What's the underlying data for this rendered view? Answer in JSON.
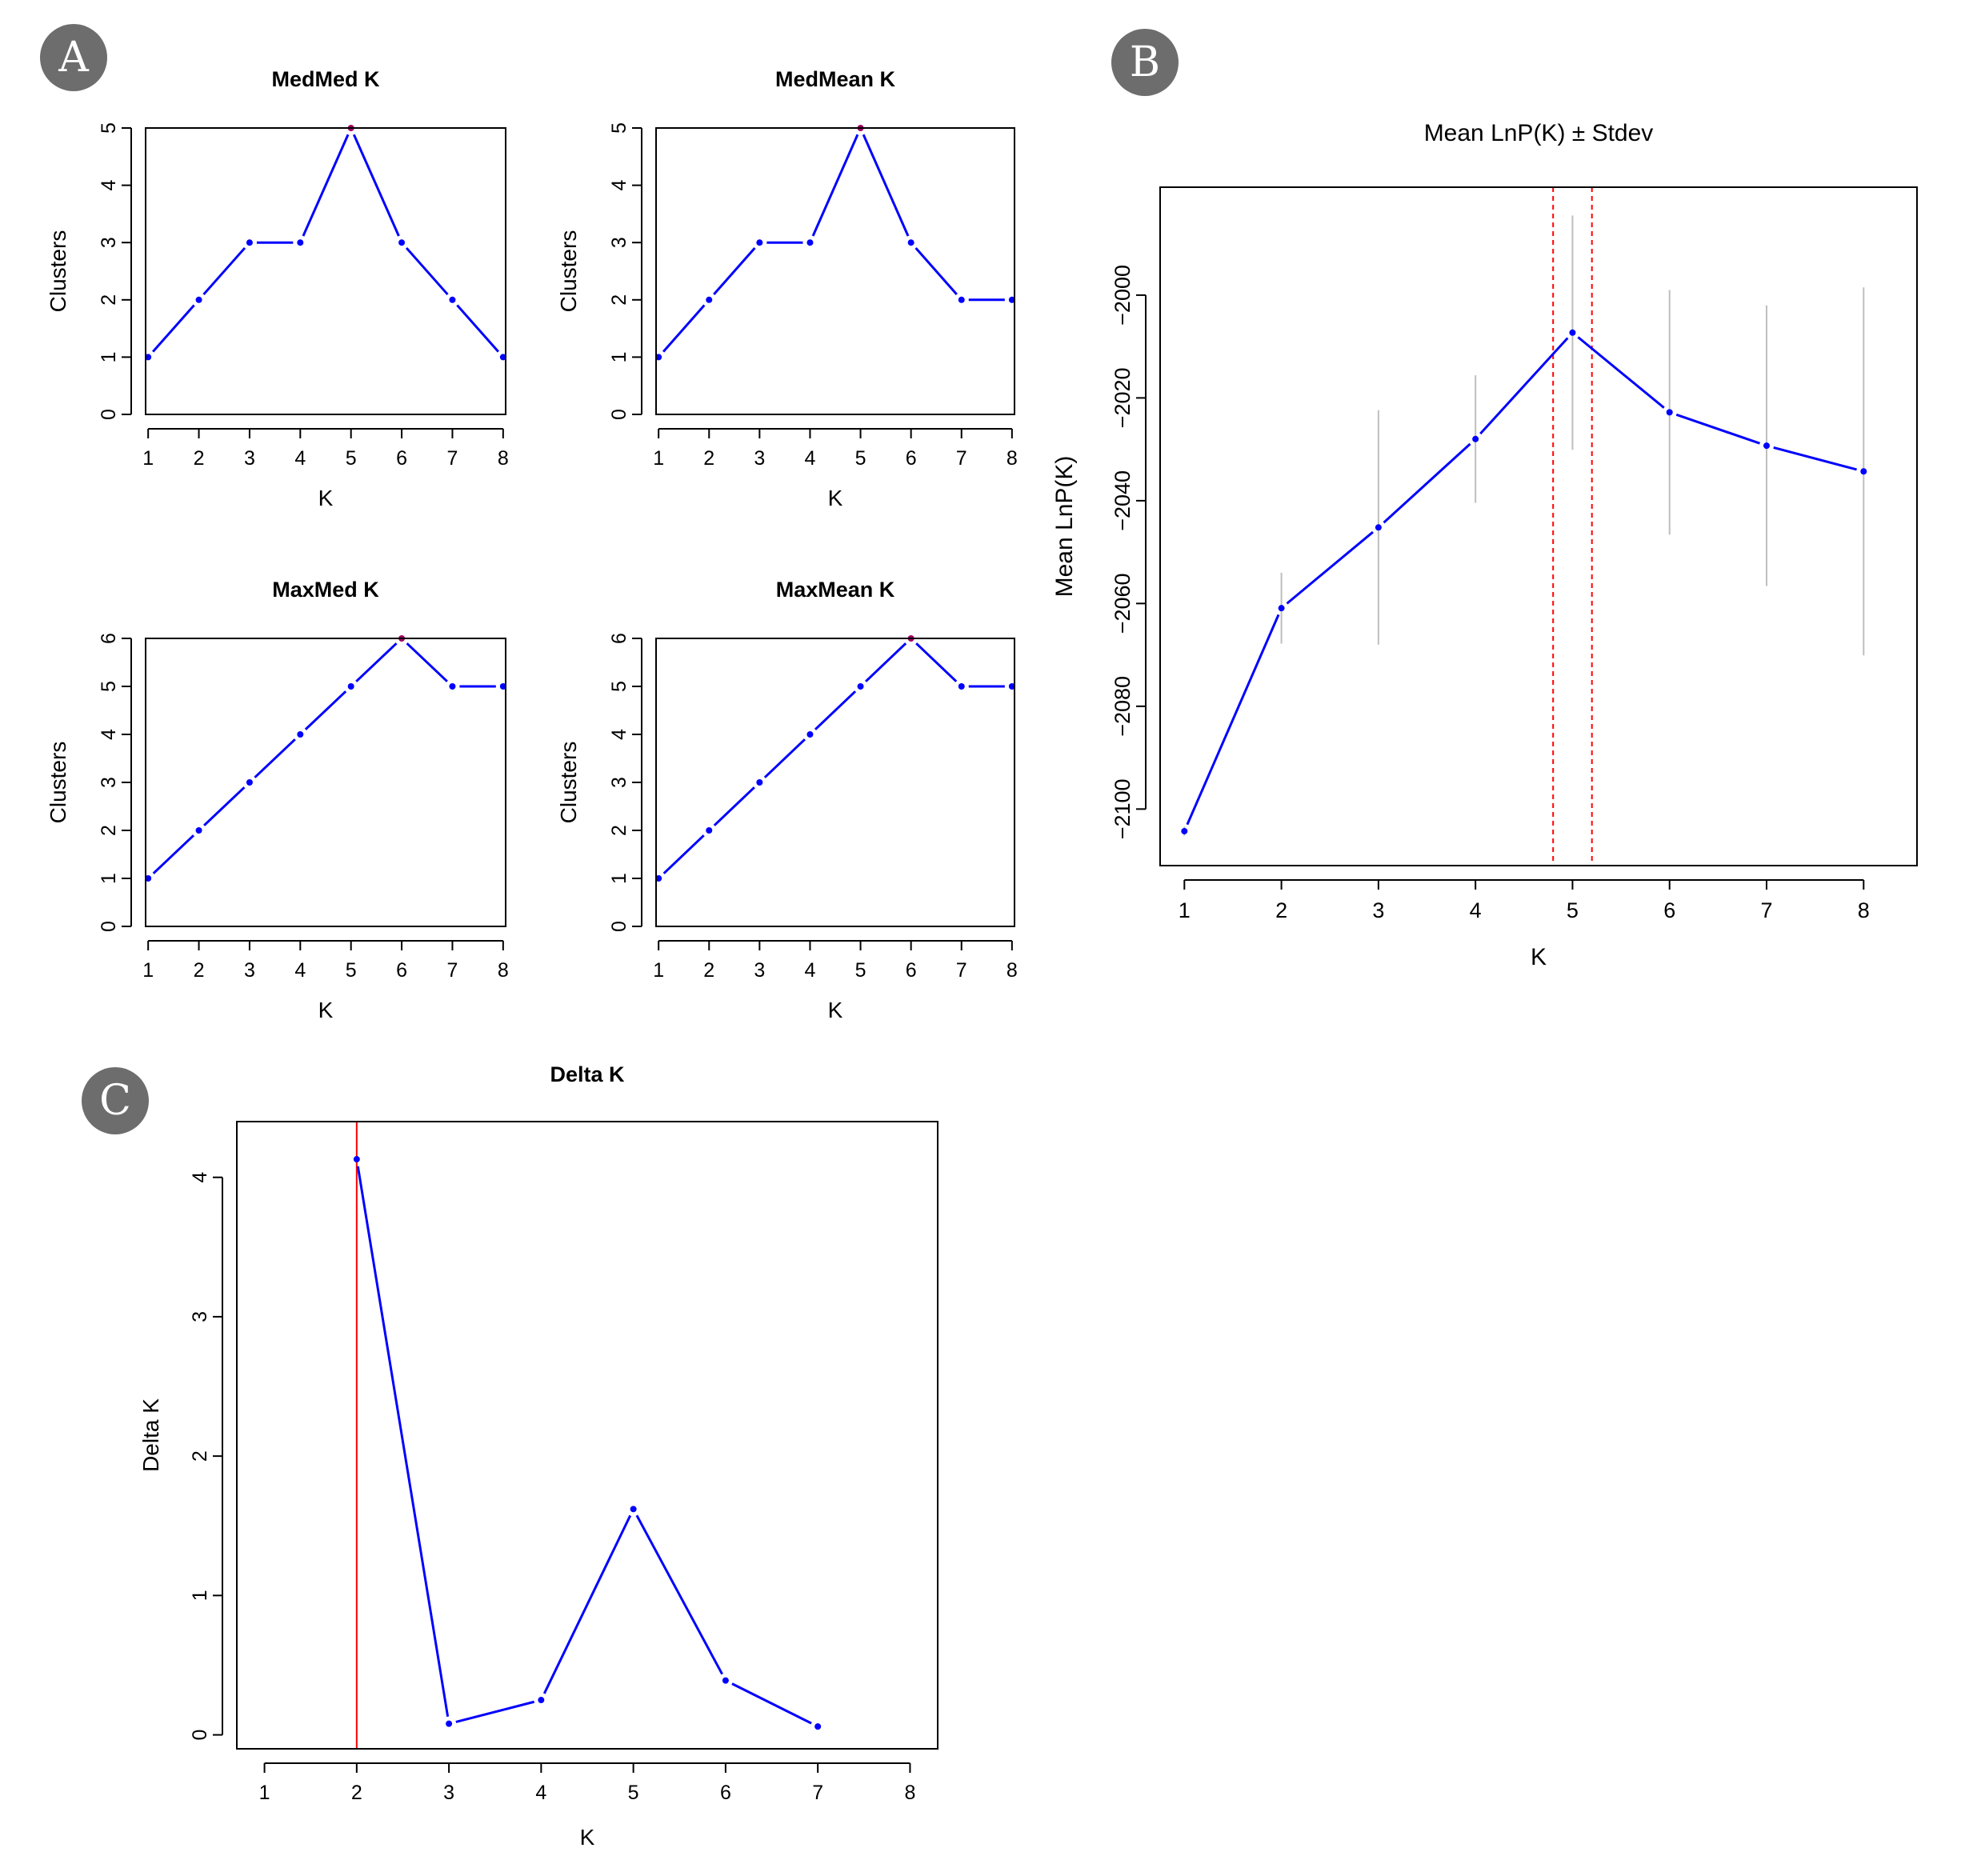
{
  "panels": {
    "A": {
      "label": "A"
    },
    "B": {
      "label": "B"
    },
    "C": {
      "label": "C"
    }
  },
  "chart_data": [
    {
      "id": "medmed",
      "panel": "A",
      "type": "line",
      "title": "MedMed K",
      "xlabel": "K",
      "ylabel": "Clusters",
      "x": [
        1,
        2,
        3,
        4,
        5,
        6,
        7,
        8
      ],
      "y": [
        1,
        2,
        3,
        3,
        5,
        3,
        2,
        1
      ],
      "xlim": [
        0.95,
        8.05
      ],
      "ylim": [
        0,
        5
      ],
      "yticks": [
        0,
        1,
        2,
        3,
        4,
        5
      ],
      "hline": 5,
      "highlight_x": 5
    },
    {
      "id": "medmean",
      "panel": "A",
      "type": "line",
      "title": "MedMean K",
      "xlabel": "K",
      "ylabel": "Clusters",
      "x": [
        1,
        2,
        3,
        4,
        5,
        6,
        7,
        8
      ],
      "y": [
        1,
        2,
        3,
        3,
        5,
        3,
        2,
        2
      ],
      "xlim": [
        0.95,
        8.05
      ],
      "ylim": [
        0,
        5
      ],
      "yticks": [
        0,
        1,
        2,
        3,
        4,
        5
      ],
      "hline": 5,
      "highlight_x": 5
    },
    {
      "id": "maxmed",
      "panel": "A",
      "type": "line",
      "title": "MaxMed K",
      "xlabel": "K",
      "ylabel": "Clusters",
      "x": [
        1,
        2,
        3,
        4,
        5,
        6,
        7,
        8
      ],
      "y": [
        1,
        2,
        3,
        4,
        5,
        6,
        5,
        5
      ],
      "xlim": [
        0.95,
        8.05
      ],
      "ylim": [
        0,
        6
      ],
      "yticks": [
        0,
        1,
        2,
        3,
        4,
        5,
        6
      ],
      "hline": 6,
      "highlight_x": 6
    },
    {
      "id": "maxmean",
      "panel": "A",
      "type": "line",
      "title": "MaxMean K",
      "xlabel": "K",
      "ylabel": "Clusters",
      "x": [
        1,
        2,
        3,
        4,
        5,
        6,
        7,
        8
      ],
      "y": [
        1,
        2,
        3,
        4,
        5,
        6,
        5,
        5
      ],
      "xlim": [
        0.95,
        8.05
      ],
      "ylim": [
        0,
        6
      ],
      "yticks": [
        0,
        1,
        2,
        3,
        4,
        5,
        6
      ],
      "hline": 6,
      "highlight_x": 6
    },
    {
      "id": "lnpk",
      "panel": "B",
      "type": "line",
      "title": "Mean LnP(K) ± Stdev",
      "xlabel": "K",
      "ylabel": "Mean LnP(K)",
      "x": [
        1,
        2,
        3,
        4,
        5,
        6,
        7,
        8
      ],
      "y": [
        -2104.3,
        -2060.9,
        -2045.2,
        -2028.0,
        -2007.3,
        -2022.8,
        -2029.3,
        -2034.3
      ],
      "stdev": [
        0.9,
        6.9,
        22.8,
        12.4,
        22.8,
        23.8,
        27.3,
        35.8
      ],
      "xlim": [
        0.75,
        8.55
      ],
      "ylim": [
        -2111,
        -1979
      ],
      "yticks": [
        -2100,
        -2080,
        -2060,
        -2040,
        -2020,
        -2000
      ],
      "vlines": [
        4.8,
        5.2
      ]
    },
    {
      "id": "deltak",
      "panel": "C",
      "type": "line",
      "title": "Delta K",
      "xlabel": "K",
      "ylabel": "Delta K",
      "x": [
        2,
        3,
        4,
        5,
        6,
        7
      ],
      "y": [
        4.13,
        0.08,
        0.25,
        1.62,
        0.39,
        0.06
      ],
      "xticks": [
        1,
        2,
        3,
        4,
        5,
        6,
        7,
        8
      ],
      "xlim": [
        0.7,
        8.3
      ],
      "ylim": [
        -0.1,
        4.4
      ],
      "yticks": [
        0,
        1,
        2,
        3,
        4
      ],
      "vline": 2
    }
  ],
  "colors": {
    "series": "#0000ff",
    "reference": "#ff0000",
    "errorbar": "#bebebe",
    "axis": "#000000"
  }
}
